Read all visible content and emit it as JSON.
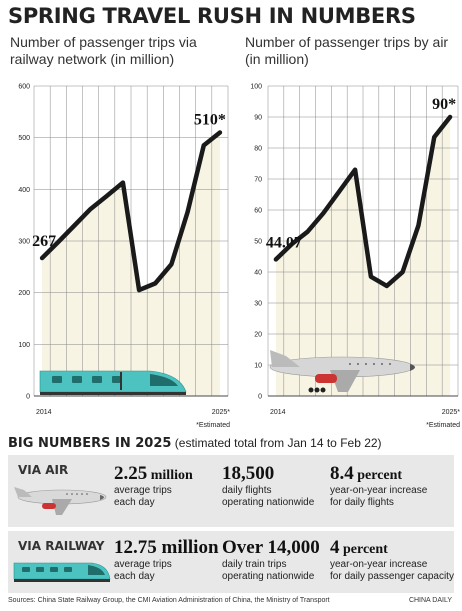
{
  "title": "SPRING TRAVEL RUSH IN NUMBERS",
  "chart_data": [
    {
      "type": "line",
      "title": "Number of passenger trips via railway network (in million)",
      "x_start_label": "2014",
      "x_end_label": "2025*",
      "footnote": "*Estimated",
      "ylim": [
        0,
        600
      ],
      "yticks": [
        "0",
        "100",
        "200",
        "300",
        "400",
        "500",
        "600"
      ],
      "values": [
        267,
        298,
        330,
        362,
        387,
        413,
        205,
        218,
        255,
        356,
        485,
        510
      ],
      "first_label": "267",
      "last_label": "510*",
      "grid": true
    },
    {
      "type": "line",
      "title": "Number of passenger trips by air (in million)",
      "x_start_label": "2014",
      "x_end_label": "2025*",
      "footnote": "*Estimated",
      "ylim": [
        0,
        100
      ],
      "yticks": [
        "0",
        "10",
        "20",
        "30",
        "40",
        "50",
        "60",
        "70",
        "80",
        "90",
        "100"
      ],
      "values": [
        44.07,
        49,
        53,
        59,
        66,
        73,
        38.5,
        35.5,
        40,
        55,
        83.5,
        90
      ],
      "first_label": "44.07",
      "last_label": "90*",
      "grid": true
    }
  ],
  "big_numbers": {
    "heading": "BIG NUMBERS IN 2025",
    "heading_note": "(estimated total from Jan 14 to Feb 22)",
    "air": {
      "label": "VIA AIR",
      "stats": [
        {
          "num": "2.25",
          "unit": " million",
          "desc1": "average trips",
          "desc2": "each day"
        },
        {
          "num": "18,500",
          "unit": "",
          "desc1": "daily flights",
          "desc2": "operating nationwide"
        },
        {
          "num": "8.4",
          "unit": " percent",
          "desc1": "year-on-year increase",
          "desc2": "for daily flights"
        }
      ]
    },
    "rail": {
      "label": "VIA RAILWAY",
      "stats": [
        {
          "num": "12.75 million",
          "unit": "",
          "desc1": "average trips",
          "desc2": "each day"
        },
        {
          "num": "Over 14,000",
          "unit": "",
          "desc1": "daily train trips",
          "desc2": "operating nationwide"
        },
        {
          "num": "4",
          "unit": " percent",
          "desc1": "year-on-year increase",
          "desc2": "for daily passenger capacity"
        }
      ]
    }
  },
  "source": "Sources: China State Railway Group, the CMI Aviation Administration of China, the Ministry of Transport",
  "brand": "CHINA DAILY",
  "colors": {
    "line": "#1a1a1a",
    "fill": "#f7f4e3",
    "grid": "#888888",
    "panel": "#e8e8e8",
    "train": "#4cc3c0"
  }
}
